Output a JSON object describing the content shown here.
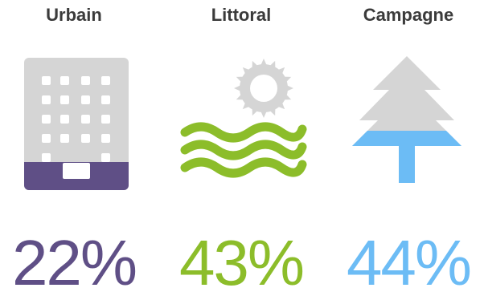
{
  "chart_data": {
    "type": "table",
    "categories": [
      "Urbain",
      "Littoral",
      "Campagne"
    ],
    "values": [
      22,
      43,
      44
    ],
    "value_labels": [
      "22%",
      "43%",
      "44%"
    ],
    "colors": [
      "#5f4f86",
      "#8cbd2a",
      "#6cbcf5"
    ],
    "icons": [
      "building-icon",
      "sea-sun-icon",
      "fir-tree-icon"
    ],
    "icon_base_color": "#d5d5d5"
  }
}
